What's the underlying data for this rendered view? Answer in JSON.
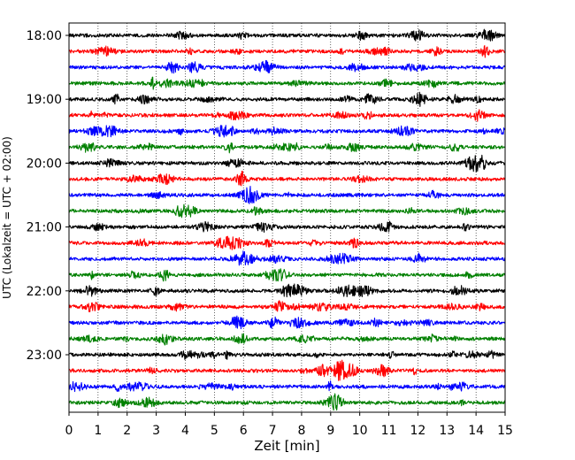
{
  "chart_data": {
    "type": "line",
    "title": "",
    "xlabel": "Zeit  [min]",
    "ylabel": "UTC (Lokalzeit = UTC + 02:00)",
    "xlim": [
      0,
      15
    ],
    "x_ticks": [
      0,
      1,
      2,
      3,
      4,
      5,
      6,
      7,
      8,
      9,
      10,
      11,
      12,
      13,
      14,
      15
    ],
    "y_tick_labels": [
      "18:00",
      "19:00",
      "20:00",
      "21:00",
      "22:00",
      "23:00"
    ],
    "grid": "vertical-dotted",
    "legend": "none",
    "trace_colors": [
      "#000000",
      "#ff0000",
      "#0000ff",
      "#008000"
    ],
    "traces": [
      {
        "time": "18:00"
      },
      {
        "time": "18:15"
      },
      {
        "time": "18:30"
      },
      {
        "time": "18:45"
      },
      {
        "time": "19:00"
      },
      {
        "time": "19:15"
      },
      {
        "time": "19:30"
      },
      {
        "time": "19:45"
      },
      {
        "time": "20:00"
      },
      {
        "time": "20:15"
      },
      {
        "time": "20:30"
      },
      {
        "time": "20:45"
      },
      {
        "time": "21:00"
      },
      {
        "time": "21:15"
      },
      {
        "time": "21:30"
      },
      {
        "time": "21:45"
      },
      {
        "time": "22:00"
      },
      {
        "time": "22:15"
      },
      {
        "time": "22:30"
      },
      {
        "time": "22:45"
      },
      {
        "time": "23:00"
      },
      {
        "time": "23:15"
      },
      {
        "time": "23:30"
      },
      {
        "time": "23:45"
      }
    ]
  }
}
